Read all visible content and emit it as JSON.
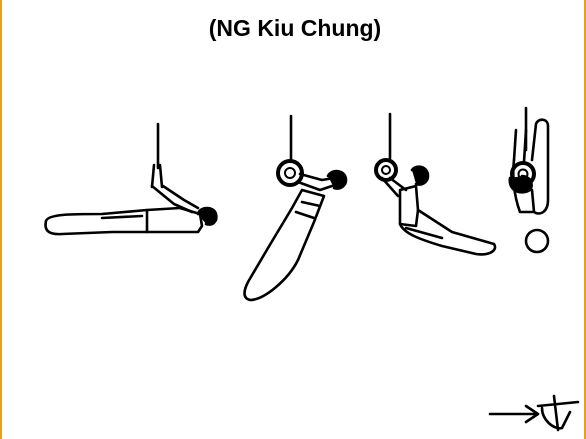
{
  "header": {
    "title": "(NG Kiu Chung)"
  },
  "colors": {
    "frame_border": "#e3a21a",
    "ink": "#000000",
    "background": "#ffffff"
  },
  "illustration": {
    "phases": [
      "horizontal-body-under-rings",
      "body-descending-diagonal",
      "pike-with-legs-extended",
      "vertical-inverted-hang"
    ],
    "notation_symbol": "arrow-with-t-symbol"
  }
}
